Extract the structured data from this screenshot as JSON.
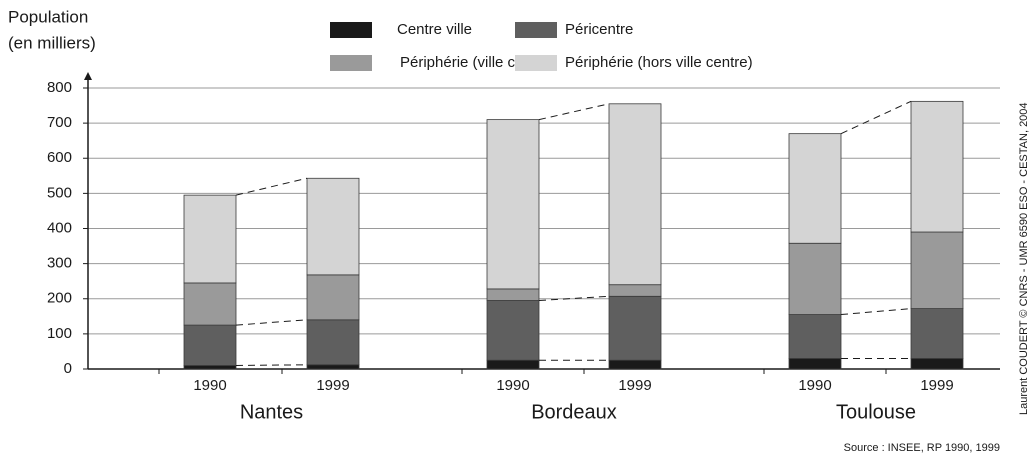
{
  "chart_data": {
    "type": "stacked_bar",
    "ylabel": [
      "Population",
      "(en milliers)"
    ],
    "groups": [
      "Nantes",
      "Bordeaux",
      "Toulouse"
    ],
    "categories": [
      "1990",
      "1999",
      "1990",
      "1999",
      "1990",
      "1999"
    ],
    "series": [
      {
        "name": "Centre ville",
        "color": "#1a1a1a",
        "dashed_connector": true,
        "values": [
          10,
          12,
          25,
          25,
          30,
          30
        ]
      },
      {
        "name": "Péricentre",
        "color": "#5f5f5f",
        "dashed_connector": true,
        "values": [
          115,
          128,
          170,
          182,
          125,
          142
        ]
      },
      {
        "name": "Périphérie (ville centre)",
        "color": "#9a9a9a",
        "dashed_connector": false,
        "values": [
          120,
          128,
          33,
          33,
          203,
          218
        ]
      },
      {
        "name": "Périphérie (hors ville centre)",
        "color": "#d4d4d4",
        "dashed_connector": true,
        "values": [
          250,
          275,
          482,
          515,
          312,
          372
        ]
      }
    ],
    "ylim": [
      0,
      800
    ],
    "yticks": [
      0,
      100,
      200,
      300,
      400,
      500,
      600,
      700,
      800
    ],
    "grid": true,
    "source": "Source : INSEE, RP 1990, 1999",
    "credit": "Laurent COUDERT © CNRS - UMR 6590 ESO - CESTAN, 2004"
  }
}
